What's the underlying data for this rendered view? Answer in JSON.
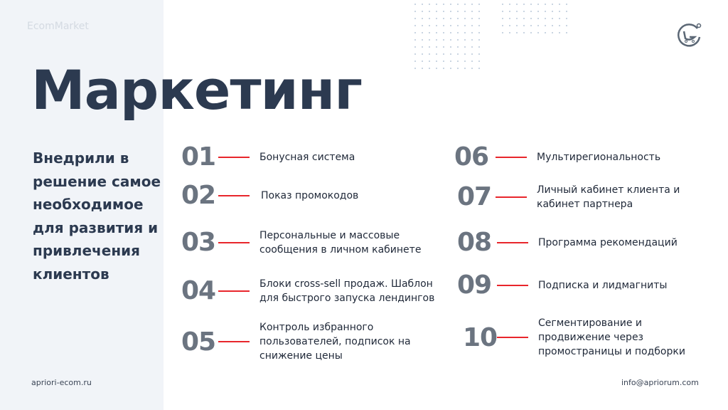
{
  "brand": "EcomMarket",
  "title": "Маркетинг",
  "subtitle": "Внедрили в решение самое необходимое для развития и привлечения клиентов",
  "footer_left": "apriori-ecom.ru",
  "footer_right": "info@apriorum.com",
  "accent_color": "#e8262c",
  "logo_icon": "g-cart-logo",
  "items": [
    {
      "num": "01",
      "text": "Бонусная система"
    },
    {
      "num": "02",
      "text": "Показ промокодов"
    },
    {
      "num": "03",
      "text": "Персональные и массовые сообщения в личном кабинете"
    },
    {
      "num": "04",
      "text": "Блоки cross-sell продаж. Шаблон для быстрого запуска лендингов"
    },
    {
      "num": "05",
      "text": "Контроль избранного пользователей, подписок на снижение цены"
    },
    {
      "num": "06",
      "text": "Мультирегиональность"
    },
    {
      "num": "07",
      "text": "Личный кабинет клиента и кабинет партнера"
    },
    {
      "num": "08",
      "text": "Программа рекомендаций"
    },
    {
      "num": "09",
      "text": "Подписка и лидмагниты"
    },
    {
      "num": "10",
      "text": "Сегментирование и продвижение через промостраницы и подборки"
    }
  ]
}
